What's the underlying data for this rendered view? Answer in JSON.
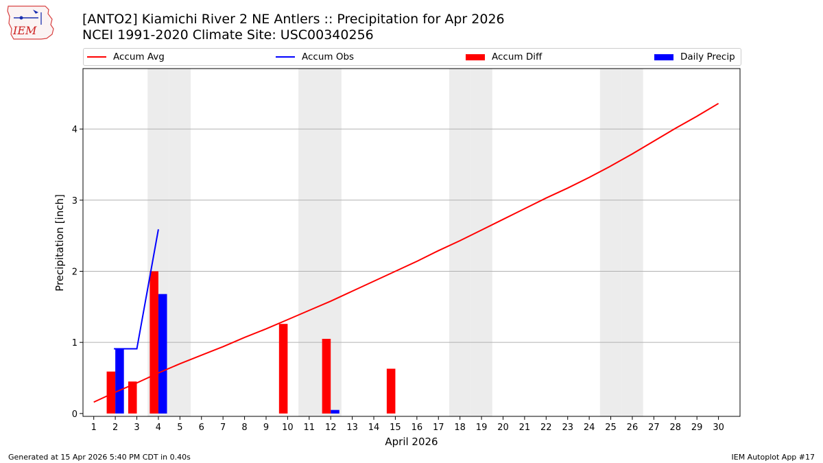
{
  "header": {
    "logo_text": "IEM",
    "title_line1": "[ANTO2] Kiamichi River 2 NE Antlers :: Precipitation for Apr 2026",
    "title_line2": "NCEI 1991-2020 Climate Site: USC00340256"
  },
  "footer": {
    "generated": "Generated at 15 Apr 2026 5:40 PM CDT in 0.40s",
    "app": "IEM Autoplot App #17"
  },
  "colors": {
    "accum_avg": "#ff0000",
    "accum_obs": "#0000ff",
    "accum_diff": "#ff0000",
    "daily_precip": "#0000ff",
    "weekend_shade": "#ececec",
    "grid": "#b0b0b0"
  },
  "chart_data": {
    "type": "bar",
    "xlabel": "April 2026",
    "ylabel": "Precipitation [inch]",
    "xlim": [
      0.5,
      31.0
    ],
    "ylim": [
      -0.04,
      4.85
    ],
    "yticks": [
      0,
      1,
      2,
      3,
      4
    ],
    "x": [
      1,
      2,
      3,
      4,
      5,
      6,
      7,
      8,
      9,
      10,
      11,
      12,
      13,
      14,
      15,
      16,
      17,
      18,
      19,
      20,
      21,
      22,
      23,
      24,
      25,
      26,
      27,
      28,
      29,
      30
    ],
    "xtick_labels": [
      "1",
      "2",
      "3",
      "4",
      "5",
      "6",
      "7",
      "8",
      "9",
      "10",
      "11",
      "12",
      "13",
      "14",
      "15",
      "16",
      "17",
      "18",
      "19",
      "20",
      "21",
      "22",
      "23",
      "24",
      "25",
      "26",
      "27",
      "28",
      "29",
      "30"
    ],
    "grid": "horizontal",
    "legend": {
      "placement": "top",
      "entries": [
        "Accum Avg",
        "Accum Obs",
        "Accum Diff",
        "Daily Precip"
      ]
    },
    "weekend_days": [
      4,
      5,
      11,
      12,
      18,
      19,
      25,
      26
    ],
    "series": [
      {
        "name": "Accum Avg",
        "kind": "line",
        "x": [
          1,
          2,
          3,
          4,
          5,
          6,
          7,
          8,
          9,
          10,
          11,
          12,
          13,
          14,
          15,
          16,
          17,
          18,
          19,
          20,
          21,
          22,
          23,
          24,
          25,
          26,
          27,
          28,
          29,
          30
        ],
        "values": [
          0.16,
          0.3,
          0.43,
          0.57,
          0.7,
          0.82,
          0.94,
          1.07,
          1.19,
          1.32,
          1.45,
          1.58,
          1.72,
          1.86,
          2.0,
          2.14,
          2.29,
          2.43,
          2.58,
          2.73,
          2.88,
          3.03,
          3.17,
          3.32,
          3.48,
          3.65,
          3.83,
          4.01,
          4.18,
          4.36
        ]
      },
      {
        "name": "Accum Obs",
        "kind": "line",
        "x": [
          2,
          3,
          4
        ],
        "values": [
          0.91,
          0.91,
          2.59
        ]
      },
      {
        "name": "Accum Diff",
        "kind": "bar",
        "x": [
          2,
          3,
          4,
          10,
          12,
          15
        ],
        "values": [
          0.59,
          0.45,
          2.0,
          1.26,
          1.05,
          0.63
        ]
      },
      {
        "name": "Daily Precip",
        "kind": "bar",
        "x": [
          2,
          4,
          12
        ],
        "values": [
          0.91,
          1.68,
          0.05
        ]
      }
    ]
  }
}
